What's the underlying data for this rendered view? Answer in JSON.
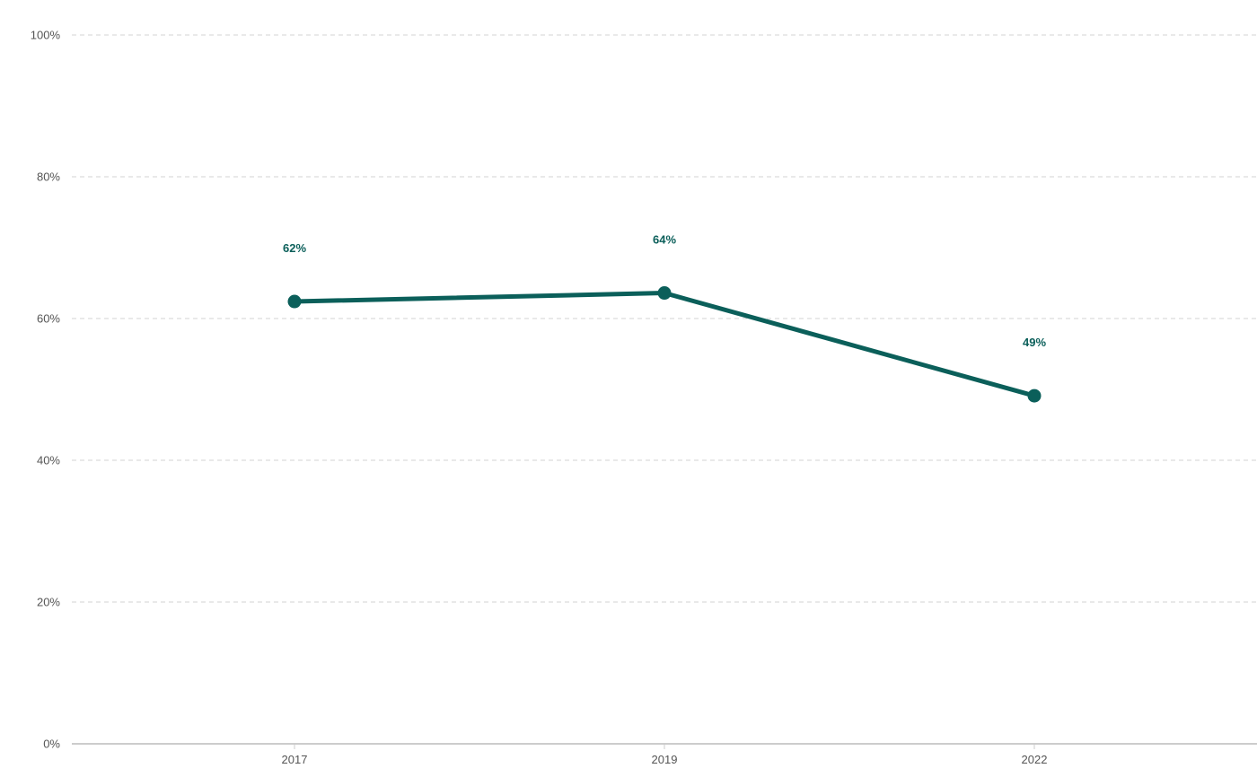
{
  "chart_data": {
    "type": "line",
    "x": [
      "2017",
      "2019",
      "2022"
    ],
    "series": [
      {
        "values": [
          62.4,
          63.6,
          49.1
        ],
        "labels": [
          "62%",
          "64%",
          "49%"
        ],
        "color": "#0b5f5a"
      }
    ],
    "ylim": [
      0,
      100
    ],
    "y_ticks": [
      0,
      20,
      40,
      60,
      80,
      100
    ],
    "y_tick_labels": [
      "0%",
      "20%",
      "40%",
      "60%",
      "80%",
      "100%"
    ],
    "x_tick_labels": [
      "2017",
      "2019",
      "2022"
    ],
    "grid": true,
    "legend": "none"
  }
}
